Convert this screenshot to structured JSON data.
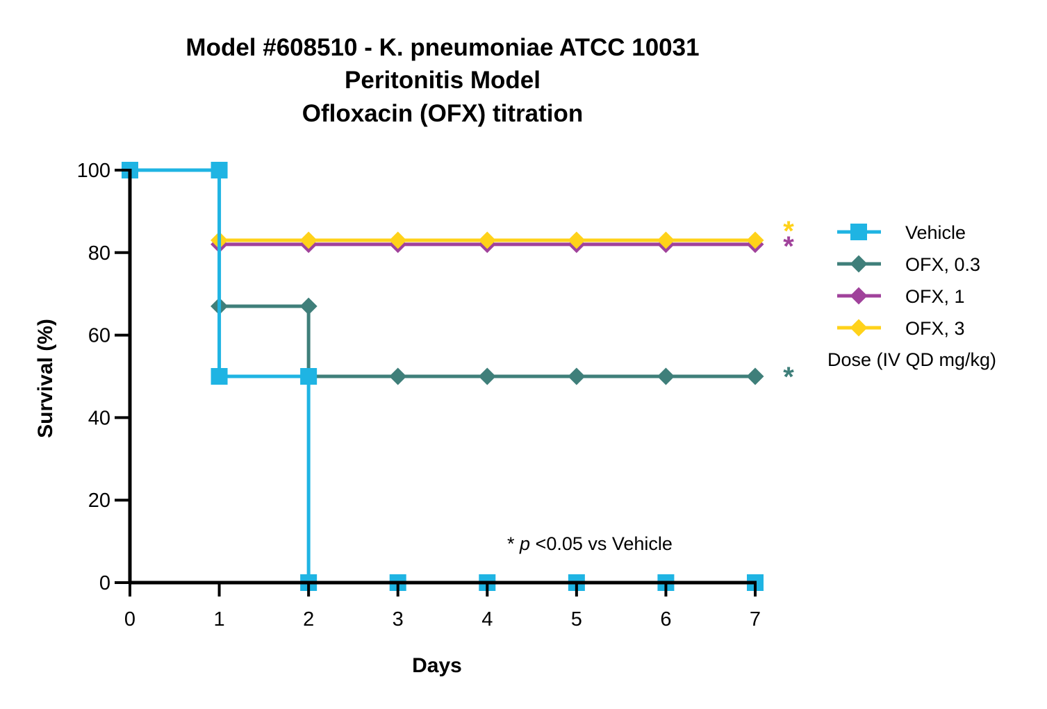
{
  "chart_data": {
    "type": "line",
    "step": true,
    "title_lines": [
      "Model #608510 - K. pneumoniae ATCC 10031",
      "Peritonitis Model",
      "Ofloxacin  (OFX) titration"
    ],
    "xlabel": "Days",
    "ylabel": "Survival (%)",
    "xlim": [
      0,
      7
    ],
    "ylim": [
      0,
      100
    ],
    "xticks": [
      0,
      1,
      2,
      3,
      4,
      5,
      6,
      7
    ],
    "yticks": [
      0,
      20,
      40,
      60,
      80,
      100
    ],
    "grid": false,
    "legend_position": "right",
    "legend_title": "Dose (IV QD mg/kg)",
    "annotation": {
      "prefix": "* ",
      "italic": "p",
      "suffix": " <0.05 vs Vehicle"
    },
    "series": [
      {
        "name": "Vehicle",
        "color": "#1FB4E3",
        "marker": "square",
        "x": [
          0,
          1,
          1,
          2,
          2,
          3,
          4,
          5,
          6,
          7
        ],
        "y": [
          100,
          100,
          50,
          50,
          0,
          0,
          0,
          0,
          0,
          0
        ],
        "markers_x": [
          0,
          1,
          1,
          2,
          2,
          3,
          4,
          5,
          6,
          7
        ],
        "markers_y": [
          100,
          100,
          50,
          50,
          0,
          0,
          0,
          0,
          0,
          0
        ],
        "significant": false
      },
      {
        "name": "OFX, 0.3",
        "color": "#3F7F7A",
        "marker": "diamond",
        "x": [
          1,
          2,
          2,
          3,
          4,
          5,
          6,
          7
        ],
        "y": [
          67,
          67,
          50,
          50,
          50,
          50,
          50,
          50
        ],
        "markers_x": [
          1,
          2,
          3,
          4,
          5,
          6,
          7
        ],
        "markers_y": [
          67,
          67,
          50,
          50,
          50,
          50,
          50
        ],
        "significant": true
      },
      {
        "name": "OFX, 1",
        "color": "#A0429B",
        "marker": "diamond",
        "x": [
          1,
          2,
          3,
          4,
          5,
          6,
          7
        ],
        "y": [
          82,
          82,
          82,
          82,
          82,
          82,
          82
        ],
        "markers_x": [
          1,
          2,
          3,
          4,
          5,
          6,
          7
        ],
        "markers_y": [
          82,
          82,
          82,
          82,
          82,
          82,
          82
        ],
        "significant": true
      },
      {
        "name": "OFX, 3",
        "color": "#FFD21A",
        "marker": "diamond",
        "x": [
          1,
          2,
          3,
          4,
          5,
          6,
          7
        ],
        "y": [
          83,
          83,
          83,
          83,
          83,
          83,
          83
        ],
        "markers_x": [
          1,
          2,
          3,
          4,
          5,
          6,
          7
        ],
        "markers_y": [
          83,
          83,
          83,
          83,
          83,
          83,
          83
        ],
        "significant": true
      }
    ],
    "significance_marker": "*"
  }
}
